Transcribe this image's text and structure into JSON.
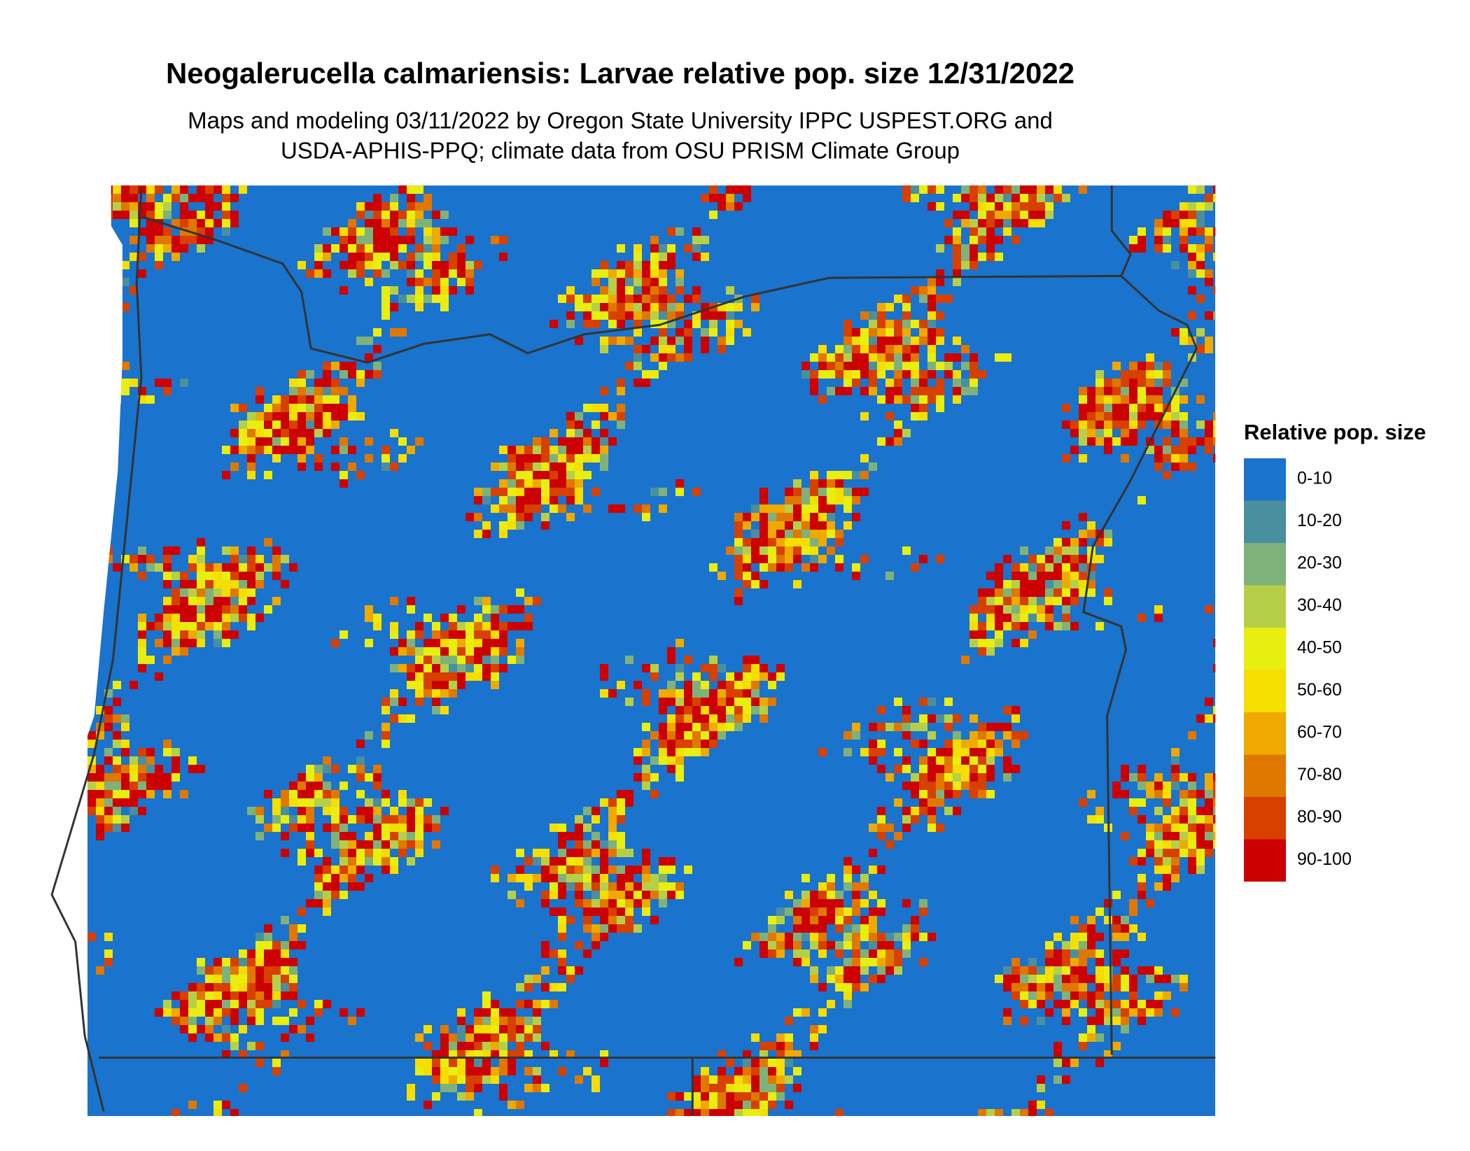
{
  "title": "Neogalerucella calmariensis: Larvae relative pop. size 12/31/2022",
  "subtitle": [
    "Maps and modeling 03/11/2022 by Oregon State University IPPC USPEST.ORG and",
    "USDA-APHIS-PPQ; climate data from OSU PRISM Climate Group"
  ],
  "legend": {
    "title": "Relative pop. size",
    "items": [
      {
        "label": "0-10",
        "color": "#1a73cc"
      },
      {
        "label": "10-20",
        "color": "#4a8fa0"
      },
      {
        "label": "20-30",
        "color": "#7fb27a"
      },
      {
        "label": "30-40",
        "color": "#b5d048"
      },
      {
        "label": "40-50",
        "color": "#e8ee10"
      },
      {
        "label": "50-60",
        "color": "#f5de00"
      },
      {
        "label": "60-70",
        "color": "#eeaa00"
      },
      {
        "label": "70-80",
        "color": "#e07800"
      },
      {
        "label": "80-90",
        "color": "#d84000"
      },
      {
        "label": "90-100",
        "color": "#cc0000"
      }
    ]
  }
}
